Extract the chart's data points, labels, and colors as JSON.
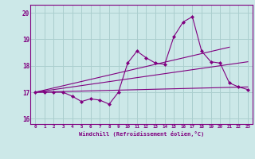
{
  "xlabel": "Windchill (Refroidissement éolien,°C)",
  "x_values": [
    0,
    1,
    2,
    3,
    4,
    5,
    6,
    7,
    8,
    9,
    10,
    11,
    12,
    13,
    14,
    15,
    16,
    17,
    18,
    19,
    20,
    21,
    22,
    23
  ],
  "main_line": [
    17.0,
    17.0,
    17.0,
    17.0,
    16.85,
    16.65,
    16.75,
    16.7,
    16.55,
    17.0,
    18.1,
    18.55,
    18.3,
    18.1,
    18.05,
    19.1,
    19.65,
    19.85,
    18.55,
    18.15,
    18.1,
    17.35,
    17.2,
    17.1
  ],
  "trend_line1_x": [
    0,
    23
  ],
  "trend_line1_y": [
    17.0,
    18.15
  ],
  "trend_line2_x": [
    0,
    21
  ],
  "trend_line2_y": [
    17.0,
    18.7
  ],
  "trend_line3_x": [
    0,
    23
  ],
  "trend_line3_y": [
    17.0,
    17.2
  ],
  "line_color": "#800080",
  "bg_color": "#cce8e8",
  "grid_color": "#aacece",
  "ylim": [
    15.8,
    20.3
  ],
  "yticks": [
    16,
    17,
    18,
    19,
    20
  ],
  "xlim": [
    -0.5,
    23.5
  ]
}
